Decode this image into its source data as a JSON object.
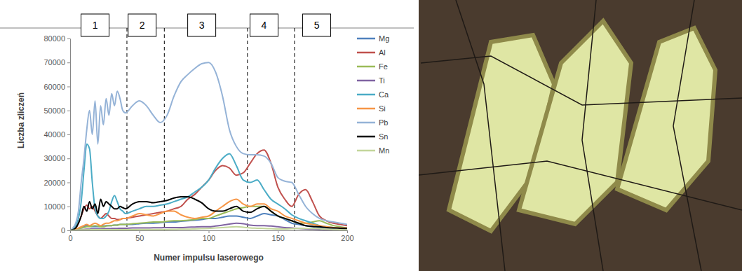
{
  "chart_data": {
    "type": "line",
    "x_label": "Numer impulsu laserowego",
    "y_label": "Liczba zliczeń",
    "x": [
      0,
      2,
      4,
      6,
      8,
      10,
      12,
      14,
      16,
      18,
      20,
      22,
      24,
      26,
      28,
      30,
      32,
      34,
      36,
      38,
      40,
      45,
      50,
      55,
      60,
      65,
      70,
      75,
      80,
      85,
      90,
      95,
      100,
      105,
      110,
      115,
      120,
      125,
      130,
      135,
      140,
      145,
      150,
      155,
      160,
      165,
      170,
      175,
      180,
      185,
      190,
      195,
      200
    ],
    "xlim": [
      0,
      200
    ],
    "ylim": [
      0,
      80000
    ],
    "xticks": [
      0,
      50,
      100,
      150,
      200
    ],
    "yticks": [
      0,
      10000,
      20000,
      30000,
      40000,
      50000,
      60000,
      70000,
      80000
    ],
    "legend": "right",
    "vlines": {
      "x": [
        41,
        68,
        128,
        162
      ],
      "line_style": "dashed"
    },
    "zones": [
      {
        "label": "1",
        "x": 18
      },
      {
        "label": "2",
        "x": 52
      },
      {
        "label": "3",
        "x": 95
      },
      {
        "label": "4",
        "x": 140
      },
      {
        "label": "5",
        "x": 178
      }
    ],
    "series": [
      {
        "name": "Mg",
        "color": "#4f81bd",
        "values": [
          0,
          100,
          300,
          600,
          1000,
          1500,
          2000,
          1800,
          1500,
          1500,
          1500,
          1500,
          1800,
          2000,
          2000,
          2000,
          2200,
          2200,
          2500,
          2500,
          2500,
          2500,
          2800,
          3000,
          3000,
          3200,
          3500,
          3500,
          3800,
          4000,
          4200,
          4500,
          5000,
          5000,
          5500,
          6000,
          6000,
          5500,
          5000,
          6000,
          7000,
          6500,
          6000,
          4500,
          3000,
          2500,
          2000,
          1500,
          1200,
          1000,
          800,
          600,
          500
        ]
      },
      {
        "name": "Al",
        "color": "#c0504d",
        "values": [
          0,
          200,
          1000,
          3000,
          6000,
          9000,
          10500,
          9000,
          10000,
          8000,
          6000,
          5000,
          6000,
          7000,
          6000,
          5000,
          5000,
          4500,
          4500,
          5000,
          5000,
          5500,
          6000,
          6500,
          7000,
          7500,
          8000,
          9000,
          10000,
          13000,
          15000,
          18000,
          21000,
          25000,
          27000,
          26000,
          23000,
          24000,
          28000,
          32000,
          33500,
          28000,
          18000,
          13000,
          10000,
          15000,
          17000,
          12000,
          6000,
          4000,
          3000,
          2500,
          2000
        ]
      },
      {
        "name": "Fe",
        "color": "#9bbb59",
        "values": [
          0,
          100,
          300,
          600,
          1000,
          1200,
          1500,
          1500,
          1800,
          2000,
          1800,
          1500,
          1500,
          1800,
          2000,
          2000,
          2200,
          2200,
          2500,
          2500,
          2500,
          2800,
          3000,
          3200,
          3500,
          3500,
          3800,
          4000,
          4000,
          4200,
          4500,
          5000,
          5000,
          6000,
          7000,
          8000,
          9000,
          9500,
          10000,
          10000,
          10000,
          8000,
          6000,
          5000,
          4000,
          3000,
          3000,
          3500,
          4000,
          3000,
          2000,
          1500,
          1000
        ]
      },
      {
        "name": "Ti",
        "color": "#8064a2",
        "values": [
          0,
          50,
          100,
          200,
          300,
          400,
          500,
          500,
          600,
          600,
          600,
          600,
          700,
          700,
          700,
          800,
          800,
          800,
          900,
          900,
          900,
          1000,
          1000,
          1000,
          1100,
          1100,
          1200,
          1200,
          1200,
          1300,
          1400,
          1500,
          1500,
          1800,
          2200,
          2600,
          3000,
          2800,
          2200,
          2000,
          2000,
          1800,
          1500,
          1200,
          1000,
          800,
          600,
          500,
          400,
          300,
          300,
          200,
          200
        ]
      },
      {
        "name": "Ca",
        "color": "#4bacc6",
        "values": [
          0,
          500,
          2000,
          5000,
          12000,
          25000,
          36000,
          34000,
          20000,
          9000,
          6000,
          5000,
          5000,
          6000,
          8000,
          12000,
          14500,
          12000,
          9000,
          8000,
          7000,
          8000,
          9000,
          10000,
          10000,
          10500,
          11000,
          12000,
          13000,
          14000,
          16000,
          18000,
          21000,
          26000,
          30000,
          32000,
          27000,
          21000,
          20000,
          21000,
          17000,
          13000,
          11000,
          9000,
          6500,
          5000,
          4000,
          3000,
          2000,
          1500,
          1200,
          1000,
          800
        ]
      },
      {
        "name": "Si",
        "color": "#f79646",
        "values": [
          0,
          200,
          500,
          1000,
          1500,
          2000,
          2500,
          2000,
          2500,
          3000,
          2500,
          2000,
          2500,
          3000,
          3000,
          3500,
          4000,
          4000,
          4500,
          5000,
          5000,
          6000,
          7000,
          6500,
          6000,
          7000,
          8000,
          8000,
          6500,
          5500,
          5000,
          5500,
          6000,
          8000,
          10000,
          12000,
          13000,
          11000,
          10000,
          11000,
          11000,
          9000,
          8000,
          6000,
          5000,
          4000,
          3000,
          2500,
          2000,
          1500,
          1200,
          1000,
          1000
        ]
      },
      {
        "name": "Pb",
        "color": "#95b3d7",
        "values": [
          0,
          1000,
          3000,
          8000,
          20000,
          30000,
          42000,
          50000,
          40000,
          54000,
          36000,
          52000,
          44000,
          55000,
          48000,
          57000,
          52000,
          58000,
          55000,
          50000,
          49000,
          52000,
          54000,
          52000,
          48000,
          45000,
          48000,
          56000,
          62000,
          65000,
          67500,
          69500,
          70000,
          66000,
          56000,
          42000,
          35000,
          32000,
          31500,
          31500,
          31000,
          28000,
          22000,
          20500,
          20000,
          15000,
          10000,
          7000,
          5000,
          4000,
          3500,
          3000,
          2500
        ]
      },
      {
        "name": "Sn",
        "color": "#000000",
        "values": [
          0,
          300,
          1000,
          3000,
          6000,
          10000,
          8000,
          12000,
          9000,
          11000,
          7000,
          13000,
          10000,
          12000,
          11000,
          10000,
          9000,
          9000,
          10000,
          9500,
          9000,
          11000,
          12000,
          12000,
          11500,
          12000,
          12500,
          13500,
          14000,
          14000,
          13000,
          11500,
          9000,
          8000,
          8000,
          9000,
          10000,
          8000,
          7500,
          9000,
          10000,
          8000,
          6000,
          5000,
          4000,
          3000,
          2000,
          1700,
          1500,
          1200,
          1000,
          900,
          800
        ]
      },
      {
        "name": "Mn",
        "color": "#c3d69b",
        "values": [
          0,
          50,
          100,
          150,
          200,
          200,
          250,
          250,
          300,
          300,
          300,
          300,
          300,
          300,
          300,
          300,
          300,
          300,
          300,
          300,
          300,
          300,
          350,
          350,
          400,
          400,
          400,
          450,
          500,
          500,
          600,
          700,
          800,
          1000,
          1200,
          1400,
          1500,
          1300,
          1000,
          900,
          800,
          700,
          600,
          600,
          700,
          800,
          800,
          800,
          700,
          500,
          400,
          300,
          200
        ]
      }
    ]
  }
}
